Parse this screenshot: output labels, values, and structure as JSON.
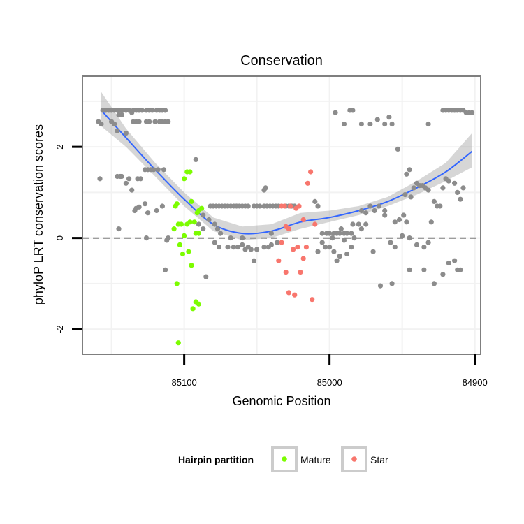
{
  "chart_data": {
    "type": "scatter",
    "title": "Conservation",
    "xlabel": "Genomic Position",
    "ylabel": "phyloP LRT conservation scores",
    "x_reversed": true,
    "xlim": [
      85170,
      84896
    ],
    "ylim": [
      -2.55,
      3.55
    ],
    "x_ticks": [
      85100,
      85000,
      84900
    ],
    "x_tick_labels": [
      "85100",
      "85000",
      "84900"
    ],
    "y_ticks": [
      -2,
      0,
      2
    ],
    "y_tick_labels": [
      "-2",
      "0",
      "2"
    ],
    "reference_line": {
      "y": 0,
      "style": "dashed"
    },
    "grid": true,
    "legend": {
      "title": "Hairpin partition",
      "position": "bottom",
      "items": [
        {
          "label": "Mature",
          "color": "#7CFC00"
        },
        {
          "label": "Star",
          "color": "#F8766D"
        }
      ]
    },
    "colors": {
      "background": "#ffffff",
      "other_points": "#8c8c8c",
      "mature": "#7CFC00",
      "star": "#F8766D",
      "smooth_line": "#3366FF",
      "confidence_band": "#999999",
      "panel_border": "#7f7f7f",
      "grid": "#f2f2f2"
    },
    "series": [
      {
        "group": "other",
        "points": [
          [
            85159,
            2.55
          ],
          [
            85157,
            2.5
          ],
          [
            85156,
            2.8
          ],
          [
            85154,
            2.8
          ],
          [
            85152,
            2.8
          ],
          [
            85150,
            2.8
          ],
          [
            85148,
            2.8
          ],
          [
            85146,
            2.8
          ],
          [
            85144,
            2.8
          ],
          [
            85142,
            2.8
          ],
          [
            85140,
            2.8
          ],
          [
            85138,
            2.8
          ],
          [
            85135,
            2.8
          ],
          [
            85133,
            2.8
          ],
          [
            85131,
            2.8
          ],
          [
            85129,
            2.8
          ],
          [
            85126,
            2.8
          ],
          [
            85124,
            2.8
          ],
          [
            85122,
            2.8
          ],
          [
            85119,
            2.8
          ],
          [
            85117,
            2.8
          ],
          [
            85115,
            2.8
          ],
          [
            85113,
            2.8
          ],
          [
            85150,
            2.55
          ],
          [
            85148,
            2.5
          ],
          [
            85145,
            2.7
          ],
          [
            85143,
            2.7
          ],
          [
            85135,
            2.55
          ],
          [
            85133,
            2.55
          ],
          [
            85131,
            2.55
          ],
          [
            85126,
            2.55
          ],
          [
            85124,
            2.55
          ],
          [
            85120,
            2.55
          ],
          [
            85117,
            2.55
          ],
          [
            85115,
            2.55
          ],
          [
            85113,
            2.55
          ],
          [
            85111,
            2.55
          ],
          [
            85146,
            2.35
          ],
          [
            85140,
            2.3
          ],
          [
            85136,
            2.75
          ],
          [
            85158,
            1.3
          ],
          [
            85146,
            1.35
          ],
          [
            85144,
            1.35
          ],
          [
            85143,
            1.35
          ],
          [
            85140,
            1.2
          ],
          [
            85138,
            1.3
          ],
          [
            85136,
            1.05
          ],
          [
            85132,
            1.3
          ],
          [
            85130,
            1.3
          ],
          [
            85127,
            1.5
          ],
          [
            85125,
            1.5
          ],
          [
            85123,
            1.5
          ],
          [
            85121,
            1.5
          ],
          [
            85118,
            1.5
          ],
          [
            85114,
            1.5
          ],
          [
            85133,
            0.65
          ],
          [
            85134,
            0.6
          ],
          [
            85131,
            0.68
          ],
          [
            85127,
            0.75
          ],
          [
            85125,
            0.55
          ],
          [
            85119,
            0.6
          ],
          [
            85115,
            0.7
          ],
          [
            85145,
            0.2
          ],
          [
            85126,
            0.0
          ],
          [
            85113,
            -0.7
          ],
          [
            85112,
            -0.05
          ],
          [
            85111,
            0.0
          ],
          [
            85092,
            1.72
          ],
          [
            85087,
            0.5
          ],
          [
            85083,
            0.4
          ],
          [
            85082,
            0.7
          ],
          [
            85080,
            0.7
          ],
          [
            85078,
            0.7
          ],
          [
            85076,
            0.7
          ],
          [
            85074,
            0.7
          ],
          [
            85072,
            0.7
          ],
          [
            85070,
            0.7
          ],
          [
            85068,
            0.7
          ],
          [
            85066,
            0.7
          ],
          [
            85064,
            0.7
          ],
          [
            85062,
            0.7
          ],
          [
            85060,
            0.7
          ],
          [
            85058,
            0.7
          ],
          [
            85056,
            0.7
          ],
          [
            85052,
            0.7
          ],
          [
            85050,
            0.7
          ],
          [
            85048,
            0.7
          ],
          [
            85045,
            0.7
          ],
          [
            85043,
            0.7
          ],
          [
            85041,
            0.7
          ],
          [
            85039,
            0.7
          ],
          [
            85037,
            0.7
          ],
          [
            85035,
            0.7
          ],
          [
            85030,
            0.7
          ],
          [
            85028,
            0.7
          ],
          [
            85026,
            0.7
          ],
          [
            85024,
            0.7
          ],
          [
            85079,
            0.3
          ],
          [
            85077,
            0.2
          ],
          [
            85075,
            0.1
          ],
          [
            85079,
            -0.1
          ],
          [
            85076,
            -0.2
          ],
          [
            85070,
            -0.2
          ],
          [
            85066,
            -0.2
          ],
          [
            85063,
            -0.2
          ],
          [
            85060,
            -0.15
          ],
          [
            85058,
            -0.25
          ],
          [
            85056,
            -0.2
          ],
          [
            85054,
            -0.25
          ],
          [
            85052,
            -0.5
          ],
          [
            85050,
            -0.25
          ],
          [
            85045,
            -0.2
          ],
          [
            85042,
            -0.2
          ],
          [
            85040,
            -0.15
          ],
          [
            85036,
            -0.1
          ],
          [
            85068,
            0.0
          ],
          [
            85060,
            0.0
          ],
          [
            85040,
            0.1
          ],
          [
            85085,
            -0.85
          ],
          [
            85090,
            0.3
          ],
          [
            85087,
            0.2
          ],
          [
            85045,
            1.05
          ],
          [
            85044,
            1.1
          ],
          [
            85010,
            0.8
          ],
          [
            85008,
            0.7
          ],
          [
            85005,
            0.1
          ],
          [
            85002,
            0.1
          ],
          [
            85000,
            0.1
          ],
          [
            84997,
            0.1
          ],
          [
            84995,
            0.1
          ],
          [
            84993,
            0.1
          ],
          [
            84990,
            0.1
          ],
          [
            84988,
            0.1
          ],
          [
            84985,
            0.1
          ],
          [
            84984,
            0.3
          ],
          [
            85008,
            -0.3
          ],
          [
            85005,
            -0.1
          ],
          [
            85003,
            -0.2
          ],
          [
            85000,
            -0.2
          ],
          [
            84997,
            -0.3
          ],
          [
            84995,
            -0.5
          ],
          [
            84993,
            -0.4
          ],
          [
            84990,
            -0.05
          ],
          [
            84988,
            -0.35
          ],
          [
            84985,
            -0.2
          ],
          [
            84998,
            0.0
          ],
          [
            84992,
            0.2
          ],
          [
            84980,
            0.3
          ],
          [
            84978,
            0.2
          ],
          [
            84975,
            0.3
          ],
          [
            84983,
            0.0
          ],
          [
            84978,
            0.6
          ],
          [
            84975,
            0.55
          ],
          [
            84972,
            0.7
          ],
          [
            84969,
            0.6
          ],
          [
            84966,
            0.7
          ],
          [
            84962,
            0.6
          ],
          [
            84970,
            -0.3
          ],
          [
            84965,
            -1.05
          ],
          [
            84957,
            -1.0
          ],
          [
            84955,
            0.35
          ],
          [
            84952,
            0.4
          ],
          [
            84949,
            0.5
          ],
          [
            84947,
            0.35
          ],
          [
            84944,
            0.9
          ],
          [
            84942,
            1.1
          ],
          [
            84940,
            1.2
          ],
          [
            84938,
            1.15
          ],
          [
            84936,
            1.15
          ],
          [
            84934,
            1.1
          ],
          [
            84932,
            1.05
          ],
          [
            84930,
            0.35
          ],
          [
            84928,
            0.8
          ],
          [
            84926,
            0.7
          ],
          [
            84924,
            0.7
          ],
          [
            84922,
            1.1
          ],
          [
            84920,
            1.3
          ],
          [
            84918,
            1.25
          ],
          [
            84914,
            1.2
          ],
          [
            84912,
            1.0
          ],
          [
            84910,
            0.85
          ],
          [
            84908,
            1.1
          ],
          [
            84996,
            2.75
          ],
          [
            84990,
            2.5
          ],
          [
            84986,
            2.8
          ],
          [
            84984,
            2.8
          ],
          [
            84978,
            2.5
          ],
          [
            84972,
            2.5
          ],
          [
            84967,
            2.6
          ],
          [
            84962,
            2.5
          ],
          [
            84959,
            2.65
          ],
          [
            84957,
            2.5
          ],
          [
            84953,
            1.95
          ],
          [
            84948,
            0.95
          ],
          [
            84947,
            1.4
          ],
          [
            84945,
            1.5
          ],
          [
            84932,
            2.5
          ],
          [
            84922,
            2.8
          ],
          [
            84920,
            2.8
          ],
          [
            84918,
            2.8
          ],
          [
            84916,
            2.8
          ],
          [
            84914,
            2.8
          ],
          [
            84912,
            2.8
          ],
          [
            84910,
            2.8
          ],
          [
            84908,
            2.8
          ],
          [
            84906,
            2.75
          ],
          [
            84904,
            2.75
          ],
          [
            84902,
            2.75
          ],
          [
            84962,
            0.5
          ],
          [
            84958,
            -0.1
          ],
          [
            84955,
            -0.2
          ],
          [
            84950,
            0.05
          ],
          [
            84945,
            0.0
          ],
          [
            84940,
            -0.15
          ],
          [
            84935,
            -0.2
          ],
          [
            84945,
            -0.7
          ],
          [
            84935,
            -0.7
          ],
          [
            84922,
            -0.8
          ],
          [
            84928,
            -1.0
          ],
          [
            84932,
            -0.1
          ],
          [
            84918,
            -0.55
          ],
          [
            84914,
            -0.5
          ],
          [
            84910,
            -0.7
          ],
          [
            84912,
            -0.7
          ]
        ]
      },
      {
        "group": "Mature",
        "points": [
          [
            85098,
            1.45
          ],
          [
            85096,
            1.45
          ],
          [
            85100,
            1.3
          ],
          [
            85105,
            0.75
          ],
          [
            85106,
            0.7
          ],
          [
            85102,
            0.3
          ],
          [
            85104,
            0.3
          ],
          [
            85095,
            0.8
          ],
          [
            85093,
            0.35
          ],
          [
            85091,
            0.55
          ],
          [
            85090,
            0.6
          ],
          [
            85088,
            0.65
          ],
          [
            85107,
            0.2
          ],
          [
            85100,
            0.05
          ],
          [
            85098,
            0.3
          ],
          [
            85092,
            0.1
          ],
          [
            85096,
            0.35
          ],
          [
            85090,
            0.1
          ],
          [
            85103,
            -0.15
          ],
          [
            85097,
            -0.3
          ],
          [
            85101,
            -0.35
          ],
          [
            85095,
            -0.6
          ],
          [
            85105,
            -1.0
          ],
          [
            85092,
            -1.4
          ],
          [
            85090,
            -1.45
          ],
          [
            85094,
            -1.55
          ],
          [
            85104,
            -2.3
          ]
        ]
      },
      {
        "group": "Star",
        "points": [
          [
            85033,
            0.7
          ],
          [
            85031,
            0.7
          ],
          [
            85027,
            0.7
          ],
          [
            85023,
            0.65
          ],
          [
            85021,
            0.7
          ],
          [
            85018,
            0.4
          ],
          [
            85013,
            1.45
          ],
          [
            85015,
            1.2
          ],
          [
            85030,
            0.25
          ],
          [
            85028,
            0.2
          ],
          [
            85033,
            -0.1
          ],
          [
            85025,
            -0.25
          ],
          [
            85022,
            -0.2
          ],
          [
            85010,
            0.3
          ],
          [
            85018,
            -0.45
          ],
          [
            85016,
            -0.2
          ],
          [
            85035,
            -0.5
          ],
          [
            85020,
            -0.75
          ],
          [
            85030,
            -0.75
          ],
          [
            85012,
            -1.35
          ],
          [
            85028,
            -1.2
          ],
          [
            85024,
            -1.25
          ]
        ]
      }
    ],
    "smooth_fit": {
      "method": "loess",
      "x": [
        85157,
        85140,
        85120,
        85100,
        85080,
        85060,
        85040,
        85020,
        85000,
        84980,
        84960,
        84940,
        84920,
        84902
      ],
      "y": [
        2.8,
        2.2,
        1.5,
        0.85,
        0.3,
        0.1,
        0.15,
        0.35,
        0.45,
        0.6,
        0.8,
        1.1,
        1.45,
        1.9
      ],
      "band_low": [
        2.45,
        2.0,
        1.35,
        0.7,
        0.15,
        -0.05,
        0.0,
        0.2,
        0.35,
        0.5,
        0.7,
        0.95,
        1.25,
        1.55
      ],
      "band_high": [
        3.2,
        2.4,
        1.65,
        1.0,
        0.45,
        0.25,
        0.3,
        0.55,
        0.6,
        0.7,
        0.9,
        1.25,
        1.65,
        2.3
      ]
    }
  }
}
